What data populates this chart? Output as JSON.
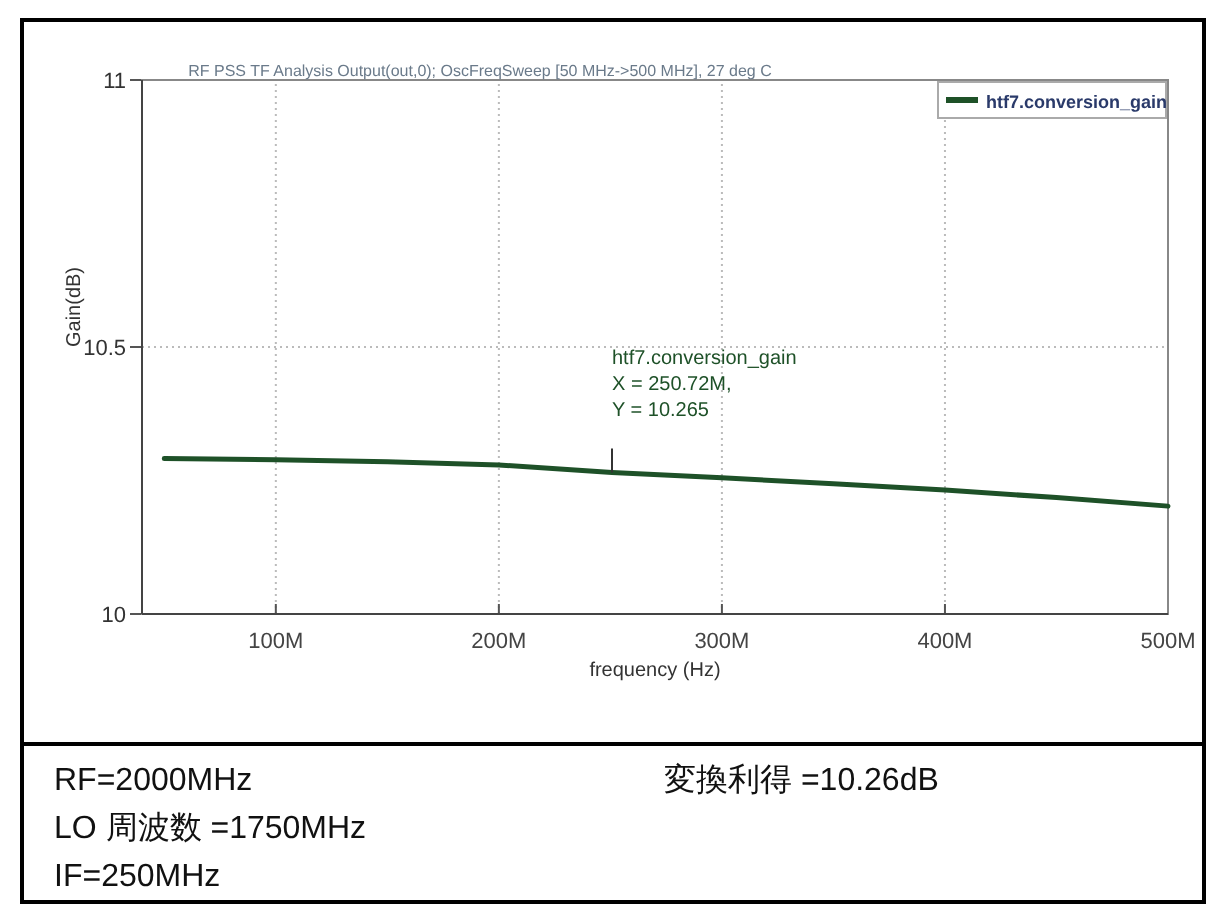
{
  "chart_data": {
    "type": "line",
    "title": "RF PSS TF Analysis Output(out,0); OscFreqSweep [50 MHz->500 MHz], 27 deg C",
    "xlabel": "frequency (Hz)",
    "ylabel": "Gain(dB)",
    "x": [
      50,
      100,
      150,
      200,
      250.72,
      300,
      350,
      400,
      450,
      500
    ],
    "series": [
      {
        "name": "htf7.conversion_gain",
        "color": "#1e5128",
        "values": [
          10.291,
          10.289,
          10.285,
          10.279,
          10.265,
          10.255,
          10.244,
          10.232,
          10.218,
          10.202
        ]
      }
    ],
    "xlim": [
      40,
      500
    ],
    "ylim": [
      10,
      11
    ],
    "xticks": [
      {
        "value": 100,
        "label": "100M"
      },
      {
        "value": 200,
        "label": "200M"
      },
      {
        "value": 300,
        "label": "300M"
      },
      {
        "value": 400,
        "label": "400M"
      },
      {
        "value": 500,
        "label": "500M"
      }
    ],
    "yticks": [
      10,
      10.5,
      11
    ],
    "grid": true,
    "legend": "top right",
    "line_style": "solid",
    "marker": "none",
    "annotations": [
      {
        "text": "htf7.conversion_gain\nX = 250.72M,\nY = 10.265",
        "x": 250.72,
        "y": 10.265
      },
      "RF=2000MHz",
      "LO 周波数 =1750MHz",
      "IF=250MHz",
      "変換利得 =10.26dB"
    ]
  }
}
